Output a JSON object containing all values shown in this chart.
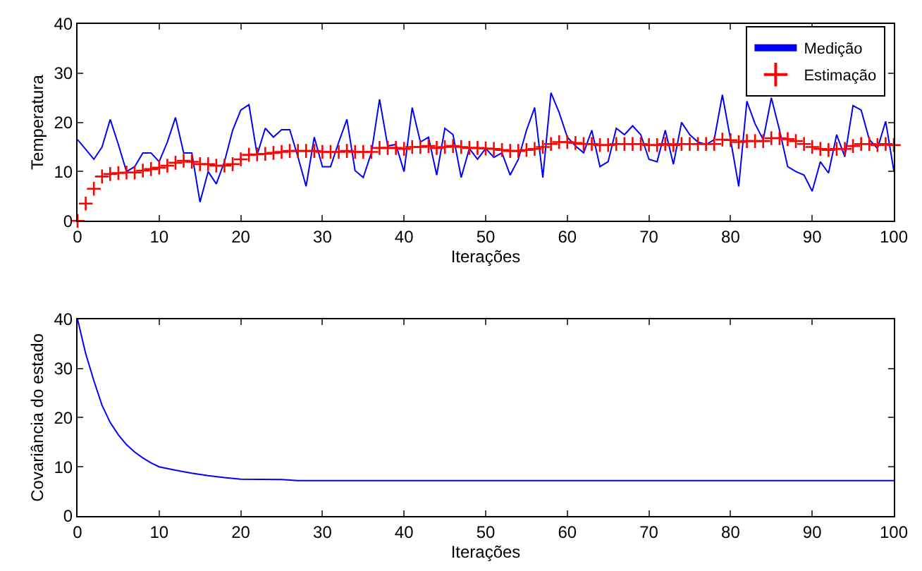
{
  "chart_data": [
    {
      "type": "line",
      "xlabel": "Iterações",
      "ylabel": "Temperatura",
      "x": [
        0,
        1,
        2,
        3,
        4,
        5,
        6,
        7,
        8,
        9,
        10,
        11,
        12,
        13,
        14,
        15,
        16,
        17,
        18,
        19,
        20,
        21,
        22,
        23,
        24,
        25,
        26,
        27,
        28,
        29,
        30,
        31,
        32,
        33,
        34,
        35,
        36,
        37,
        38,
        39,
        40,
        41,
        42,
        43,
        44,
        45,
        46,
        47,
        48,
        49,
        50,
        51,
        52,
        53,
        54,
        55,
        56,
        57,
        58,
        59,
        60,
        61,
        62,
        63,
        64,
        65,
        66,
        67,
        68,
        69,
        70,
        71,
        72,
        73,
        74,
        75,
        76,
        77,
        78,
        79,
        80,
        81,
        82,
        83,
        84,
        85,
        86,
        87,
        88,
        89,
        90,
        91,
        92,
        93,
        94,
        95,
        96,
        97,
        98,
        99,
        100
      ],
      "series": [
        {
          "name": "Medição",
          "color": "#0000ff",
          "type": "line",
          "marker": "none",
          "values": [
            16.5,
            14.5,
            12.5,
            15,
            20.6,
            15.5,
            10,
            11,
            13.8,
            13.8,
            12,
            16,
            21,
            13.8,
            13.8,
            3.8,
            10,
            7.5,
            12,
            18.4,
            22.5,
            23.6,
            13.4,
            18.8,
            17,
            18.5,
            18.5,
            13,
            7,
            17,
            11,
            11,
            16,
            20.6,
            10.2,
            8.8,
            13.8,
            24.7,
            15.2,
            15.5,
            10,
            23,
            16,
            17,
            9.3,
            18.8,
            17.5,
            8.8,
            14.7,
            12.5,
            14.7,
            12.9,
            13.8,
            9.3,
            12.5,
            18.4,
            23,
            8.8,
            26,
            22,
            17,
            15.2,
            13.8,
            18.4,
            11,
            12,
            18.8,
            17.5,
            19.3,
            17.5,
            12.5,
            12,
            18.4,
            11.5,
            20,
            17.5,
            16,
            15.5,
            16.5,
            25.6,
            16.5,
            7,
            24.3,
            19.7,
            16.5,
            25,
            18.4,
            11,
            10,
            9.3,
            6,
            12,
            9.7,
            17.5,
            13,
            23.4,
            22.5,
            16.5,
            14.7,
            20.2,
            10.2
          ]
        },
        {
          "name": "Estimação",
          "color": "#ff0000",
          "type": "scatter",
          "marker": "cross",
          "values": [
            0,
            3.5,
            6.5,
            9,
            9.5,
            9.7,
            9.8,
            9.8,
            10.2,
            10.5,
            10.8,
            11.2,
            11.8,
            12.2,
            12,
            11.5,
            11.5,
            11.2,
            11.2,
            11.5,
            12.5,
            13.4,
            13.5,
            13.6,
            13.8,
            14,
            14.2,
            14.2,
            14.2,
            14.2,
            14,
            14,
            14,
            14.2,
            14,
            14,
            14,
            14.8,
            14.8,
            14.8,
            14.6,
            15,
            15,
            15.2,
            14.8,
            15,
            15.2,
            15,
            14.8,
            14.8,
            14.7,
            14.6,
            14.4,
            14.2,
            14.2,
            14.4,
            14.6,
            15,
            15.6,
            16,
            16,
            15.8,
            15.6,
            15.6,
            15.4,
            15.4,
            15.6,
            15.6,
            15.6,
            15.6,
            15.4,
            15.4,
            15.6,
            15.4,
            15.6,
            15.6,
            15.6,
            15.6,
            15.6,
            16.5,
            16.4,
            16,
            16.2,
            16.2,
            16.2,
            16.8,
            16.8,
            16.6,
            16.2,
            15.6,
            15,
            14.6,
            14.4,
            14.6,
            14.6,
            15.2,
            15.6,
            15.6,
            15.4,
            15.6,
            15.4
          ]
        }
      ],
      "xlim": [
        0,
        100
      ],
      "xticks": [
        0,
        10,
        20,
        30,
        40,
        50,
        60,
        70,
        80,
        90,
        100
      ],
      "ylim": [
        0,
        40
      ],
      "yticks": [
        0,
        10,
        20,
        30,
        40
      ],
      "legend": "top right"
    },
    {
      "type": "line",
      "xlabel": "Iterações",
      "ylabel": "Covariância do estado",
      "series": [
        {
          "color": "#0000ff",
          "x": [
            0,
            1,
            2,
            3,
            4,
            5,
            6,
            7,
            8,
            9,
            10,
            12,
            14,
            16,
            18,
            20,
            25,
            27,
            30,
            100
          ],
          "values": [
            40,
            33,
            27.5,
            22.5,
            19,
            16.5,
            14.5,
            13,
            11.8,
            10.8,
            10,
            9.3,
            8.7,
            8.2,
            7.8,
            7.5,
            7.4,
            7.2,
            7.2,
            7.2
          ]
        }
      ],
      "xlim": [
        0,
        100
      ],
      "xticks": [
        0,
        10,
        20,
        30,
        40,
        50,
        60,
        70,
        80,
        90,
        100
      ],
      "ylim": [
        0,
        40
      ],
      "yticks": [
        0,
        10,
        20,
        30,
        40
      ],
      "legend": false
    }
  ]
}
